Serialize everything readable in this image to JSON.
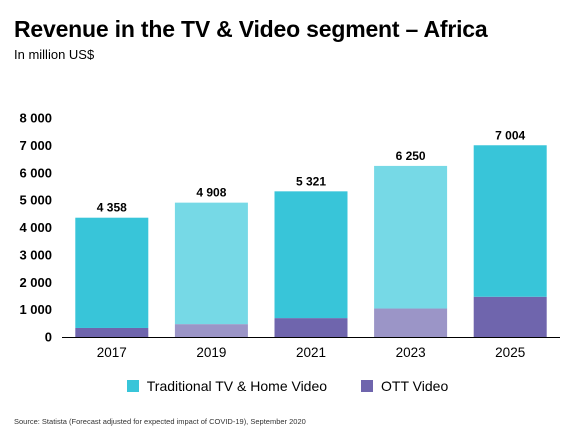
{
  "title": "Revenue in the TV & Video segment – Africa",
  "subtitle": "In million US$",
  "source": "Source: Statista (Forecast adjusted for expected impact of COVID-19), September 2020",
  "colors": {
    "traditional": "#38c5d9",
    "traditional_light": "#76d9e6",
    "ott": "#6f65ad",
    "ott_light": "#9b95c7",
    "axis": "#000000",
    "grid": "#d9d9d9"
  },
  "chart_data": {
    "type": "bar",
    "stacked": true,
    "categories": [
      "2017",
      "2019",
      "2021",
      "2023",
      "2025"
    ],
    "series": [
      {
        "name": "Traditional TV & Home Video",
        "values": [
          4028,
          4438,
          4631,
          5210,
          5534
        ]
      },
      {
        "name": "OTT Video",
        "values": [
          330,
          470,
          690,
          1040,
          1470
        ]
      }
    ],
    "totals": [
      "4 358",
      "4 908",
      "5 321",
      "6 250",
      "7 004"
    ],
    "ylim": [
      0,
      8000
    ],
    "yticks": [
      0,
      1000,
      2000,
      3000,
      4000,
      5000,
      6000,
      7000,
      8000
    ],
    "ytick_labels": [
      "0",
      "1 000",
      "2 000",
      "3 000",
      "4 000",
      "5 000",
      "6 000",
      "7 000",
      "8 000"
    ],
    "light_categories": [
      "2019",
      "2023"
    ],
    "legend_position": "bottom",
    "grid": false
  }
}
